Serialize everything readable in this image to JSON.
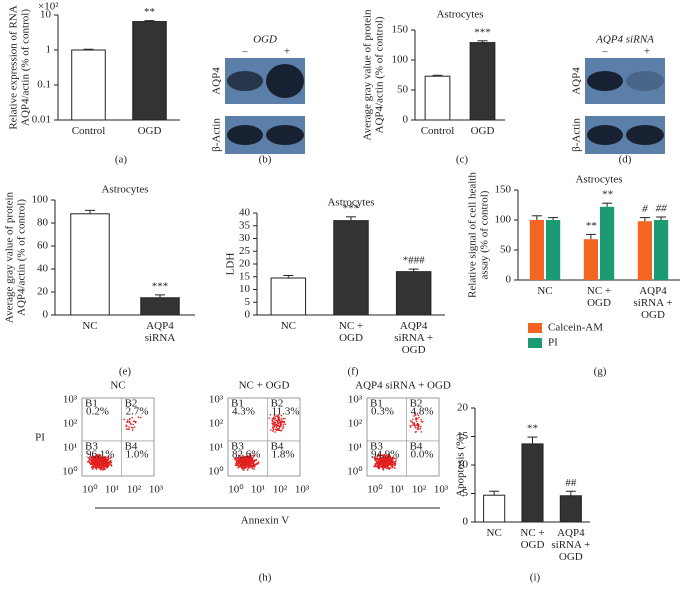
{
  "chart_data": [
    {
      "type": "bar",
      "panel_label": "(a)",
      "log": true,
      "multiplier": "×10²",
      "ylabel": [
        "Relative expression of RNA",
        "AQP4/actin (% of control)"
      ],
      "categories": [
        "Control",
        "OGD"
      ],
      "values": [
        1,
        6.5
      ],
      "errors": [
        0.05,
        0.4
      ],
      "annotations": [
        null,
        "**"
      ],
      "colors": [
        "#ffffff",
        "#333333"
      ],
      "ylim": [
        0.01,
        10
      ],
      "yticks": [
        0.01,
        0.1,
        1,
        10
      ]
    },
    {
      "type": "bar",
      "panel_label": "(c)",
      "title": "Astrocytes",
      "ylabel": [
        "Average gray value of protein",
        "AQP4/actin (% of control)"
      ],
      "categories": [
        "Control",
        "OGD"
      ],
      "values": [
        73,
        129
      ],
      "errors": [
        1.5,
        3
      ],
      "annotations": [
        null,
        "***"
      ],
      "colors": [
        "#ffffff",
        "#333333"
      ],
      "ylim": [
        0,
        150
      ],
      "yticks": [
        0,
        50,
        100,
        150
      ]
    },
    {
      "type": "bar",
      "panel_label": "(e)",
      "title": "Astrocytes",
      "ylabel": [
        "Average gray value of protein",
        "AQP4/actin (% of control)"
      ],
      "categories": [
        "NC",
        "AQP4 siRNA"
      ],
      "values": [
        88,
        15
      ],
      "errors": [
        3,
        2.5
      ],
      "annotations": [
        null,
        "***"
      ],
      "colors": [
        "#ffffff",
        "#333333"
      ],
      "ylim": [
        0,
        100
      ],
      "yticks": [
        0,
        20,
        40,
        60,
        80,
        100
      ]
    },
    {
      "type": "bar",
      "panel_label": "(f)",
      "title": "Astrocytes",
      "ylabel": [
        "LDH"
      ],
      "categories": [
        "NC",
        "NC + OGD",
        "AQP4 siRNA + OGD"
      ],
      "values": [
        14.5,
        37,
        17
      ],
      "errors": [
        1,
        1.5,
        1
      ],
      "annotations": [
        null,
        "***",
        "*###"
      ],
      "colors": [
        "#ffffff",
        "#333333",
        "#333333"
      ],
      "ylim": [
        0,
        40
      ],
      "yticks": [
        0,
        5,
        10,
        15,
        20,
        25,
        30,
        35,
        40
      ]
    },
    {
      "type": "bar",
      "panel_label": "(g)",
      "title": "Astrocytes",
      "ylabel": [
        "Relative signal of cell health",
        "assay (% of control)"
      ],
      "categories": [
        "NC",
        "NC + OGD",
        "AQP4 siRNA + OGD"
      ],
      "series": [
        {
          "name": "Calcein-AM",
          "color": "#f26522",
          "values": [
            100,
            68,
            98
          ],
          "errors": [
            7,
            8,
            6
          ],
          "annotations": [
            null,
            "**",
            "#"
          ]
        },
        {
          "name": "PI",
          "color": "#1a9b73",
          "values": [
            100,
            122,
            100
          ],
          "errors": [
            4,
            6,
            5
          ],
          "annotations": [
            null,
            "**",
            "##"
          ]
        }
      ],
      "ylim": [
        0,
        150
      ],
      "yticks": [
        0,
        50,
        100,
        150
      ],
      "legend": "bottom"
    },
    {
      "type": "bar",
      "panel_label": "(i)",
      "ylabel": [
        "Apoptosis (%)"
      ],
      "categories": [
        "NC",
        "NC + OGD",
        "AQP4 siRNA + OGD"
      ],
      "values": [
        4.7,
        13.7,
        4.6
      ],
      "errors": [
        0.7,
        1.2,
        0.8
      ],
      "annotations": [
        null,
        "**",
        "##"
      ],
      "colors": [
        "#ffffff",
        "#333333",
        "#333333"
      ],
      "ylim": [
        0,
        20
      ],
      "yticks": [
        0,
        5,
        10,
        15,
        20
      ]
    }
  ],
  "blots": [
    {
      "panel_label": "(b)",
      "treatment": "OGD",
      "lanes": [
        "–",
        "+"
      ],
      "rows": [
        "AQP4",
        "β-Actin"
      ]
    },
    {
      "panel_label": "(d)",
      "treatment": "AQP4 siRNA",
      "lanes": [
        "–",
        "+"
      ],
      "rows": [
        "AQP4",
        "β-Actin"
      ]
    }
  ],
  "flow": {
    "panel_label": "(h)",
    "ylabel": "PI",
    "xlabel": "Annexin V",
    "ticks": [
      "10⁰",
      "10¹",
      "10²",
      "10³"
    ],
    "plots": [
      {
        "title": "NC",
        "quadrants": [
          [
            "B1",
            "0.2%"
          ],
          [
            "B2",
            "2.7%"
          ],
          [
            "B3",
            "96.1%"
          ],
          [
            "B4",
            "1.0%"
          ]
        ]
      },
      {
        "title": "NC + OGD",
        "quadrants": [
          [
            "B1",
            "4.3%"
          ],
          [
            "B2",
            "11.3%"
          ],
          [
            "B3",
            "82.6%"
          ],
          [
            "B4",
            "1.8%"
          ]
        ]
      },
      {
        "title": "AQP4 siRNA + OGD",
        "quadrants": [
          [
            "B1",
            "0.3%"
          ],
          [
            "B2",
            "4.8%"
          ],
          [
            "B3",
            "94.9%"
          ],
          [
            "B4",
            "0.0%"
          ]
        ]
      }
    ]
  }
}
